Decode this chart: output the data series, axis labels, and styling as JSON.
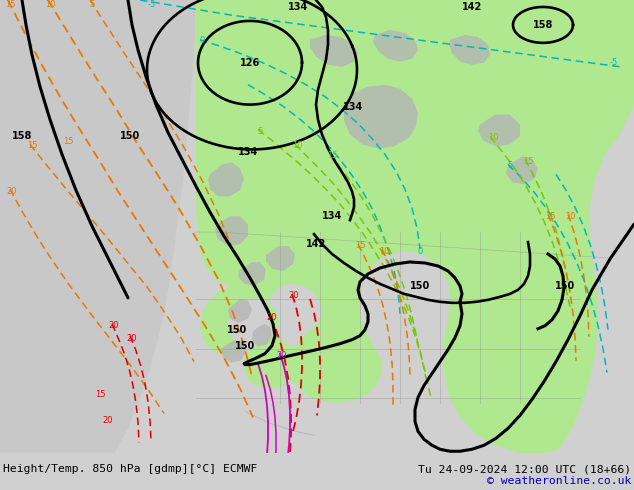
{
  "title_left": "Height/Temp. 850 hPa [gdmp][°C] ECMWF",
  "title_right": "Tu 24-09-2024 12:00 UTC (18+66)",
  "copyright": "© weatheronline.co.uk",
  "bg_color": "#d0d0d0",
  "map_bg_color": "#d0d0d0",
  "green_fill": "#b0e890",
  "gray_land": "#b8b8b8",
  "font_color_black": "#000000",
  "font_color_blue": "#0000bb",
  "bottom_bar_color": "#d0d0d0",
  "figsize": [
    6.34,
    4.9
  ],
  "dpi": 100,
  "cyan_color": "#00b8b8",
  "orange_color": "#e87800",
  "red_color": "#e00000",
  "magenta_color": "#d000c0",
  "lime_color": "#78c800",
  "black_lw": 2.2,
  "dashed_lw": 1.1
}
